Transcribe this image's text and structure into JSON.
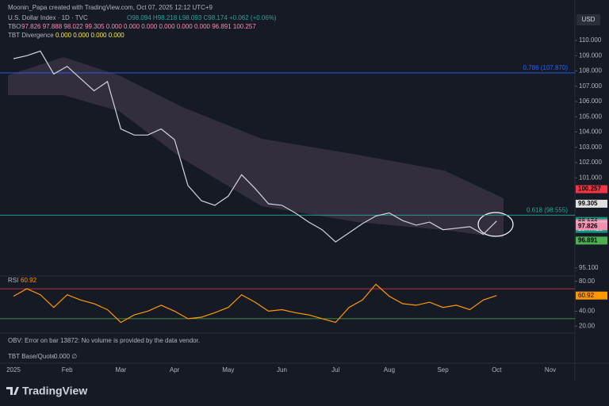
{
  "header": {
    "credit": "Moonin_Papa created with TradingView.com, Oct 07, 2025 12:12 UTC+9",
    "symbol_line": "U.S. Dollar Index · 1D · TVC",
    "ohlc": "O98.094 H98.218 L98.093 C98.174 +0.062 (+0.06%)",
    "tbo": "TBO",
    "tbo_values": "97.826 97.888 98.022 99.305 0.000 0.000 0.000 0.000 0.000 0.000 96.891 100.257",
    "tbt": "TBT Divergence",
    "tbt_values": "0.000 0.000 0.000 0.000",
    "obv": "OBV: Error on bar 13872: No volume is provided by the data vendor.",
    "base_quote": "TBT Base/Quote",
    "base_quote_values": "0.000 ∅",
    "brand": "TradingView",
    "currency": "USD"
  },
  "chart_data": [
    {
      "type": "line",
      "title": "U.S. Dollar Index",
      "color": "#d1d4dc",
      "categories": [
        "2025",
        null,
        null,
        null,
        "Feb",
        null,
        null,
        null,
        "Mar",
        null,
        null,
        null,
        "Apr",
        null,
        null,
        null,
        "May",
        null,
        null,
        null,
        "Jun",
        null,
        null,
        null,
        "Jul",
        null,
        null,
        null,
        "Aug",
        null,
        null,
        null,
        "Sep",
        null,
        null,
        null,
        "Oct",
        null,
        null,
        null,
        "Nov"
      ],
      "values": [
        108.8,
        109.0,
        109.3,
        107.8,
        108.3,
        107.5,
        106.7,
        107.3,
        104.2,
        103.8,
        103.8,
        104.2,
        103.5,
        100.5,
        99.5,
        99.2,
        99.8,
        101.2,
        100.3,
        99.3,
        99.2,
        98.7,
        98.1,
        97.6,
        96.8,
        97.4,
        98.0,
        98.5,
        98.7,
        98.2,
        97.9,
        98.1,
        97.6,
        97.7,
        97.8,
        97.3,
        98.174,
        null,
        null,
        null,
        null
      ],
      "ylim": [
        94.47,
        111.71
      ],
      "yticks": [
        {
          "value": 110,
          "label": "110.000"
        },
        {
          "value": 109,
          "label": "109.000"
        },
        {
          "value": 108,
          "label": "108.000"
        },
        {
          "value": 107,
          "label": "107.000"
        },
        {
          "value": 106,
          "label": "106.000"
        },
        {
          "value": 105,
          "label": "105.000"
        },
        {
          "value": 104,
          "label": "104.000"
        },
        {
          "value": 103,
          "label": "103.000"
        },
        {
          "value": 102,
          "label": "102.000"
        },
        {
          "value": 101,
          "label": "101.000"
        },
        {
          "value": 95.1,
          "label": "95.100"
        }
      ],
      "levels": [
        {
          "value": 107.87,
          "label": "0.786 (107.870)",
          "color": "#2962ff"
        },
        {
          "value": 98.555,
          "label": "0.618 (98.555)",
          "color": "#26a69a"
        }
      ],
      "price_labels": [
        {
          "value": 100.257,
          "label": "100.257",
          "color": "#f23645"
        },
        {
          "value": 99.305,
          "label": "99.305",
          "color": "#e0e0e0"
        },
        {
          "value": 98.174,
          "label": "98.174",
          "color": "#089981"
        },
        {
          "value": 98.022,
          "label": "98.022",
          "color": "#f48fb1"
        },
        {
          "value": 97.888,
          "label": "97.888",
          "color": "#f8bbd0"
        },
        {
          "value": 97.826,
          "label": "97.826",
          "color": "#f48fb1"
        },
        {
          "value": 96.891,
          "label": "96.891",
          "color": "#4caf50"
        }
      ],
      "countdown": "19:47:23"
    },
    {
      "type": "line",
      "title": "RSI",
      "color": "#ff9800",
      "values": [
        60,
        70,
        62,
        45,
        62,
        55,
        50,
        42,
        25,
        35,
        40,
        48,
        40,
        30,
        32,
        38,
        45,
        62,
        52,
        40,
        42,
        38,
        35,
        30,
        25,
        45,
        55,
        76,
        60,
        50,
        48,
        52,
        45,
        48,
        42,
        55,
        60.92,
        null,
        null,
        null,
        null
      ],
      "last_label": "60.92",
      "ylim": [
        15,
        85
      ],
      "yticks": [
        {
          "value": 80,
          "label": "80.00"
        },
        {
          "value": 40,
          "label": "40.00"
        },
        {
          "value": 20,
          "label": "20.00"
        }
      ],
      "levels": [
        {
          "value": 70,
          "color": "#f23645"
        },
        {
          "value": 30,
          "color": "#4caf50"
        }
      ]
    }
  ]
}
